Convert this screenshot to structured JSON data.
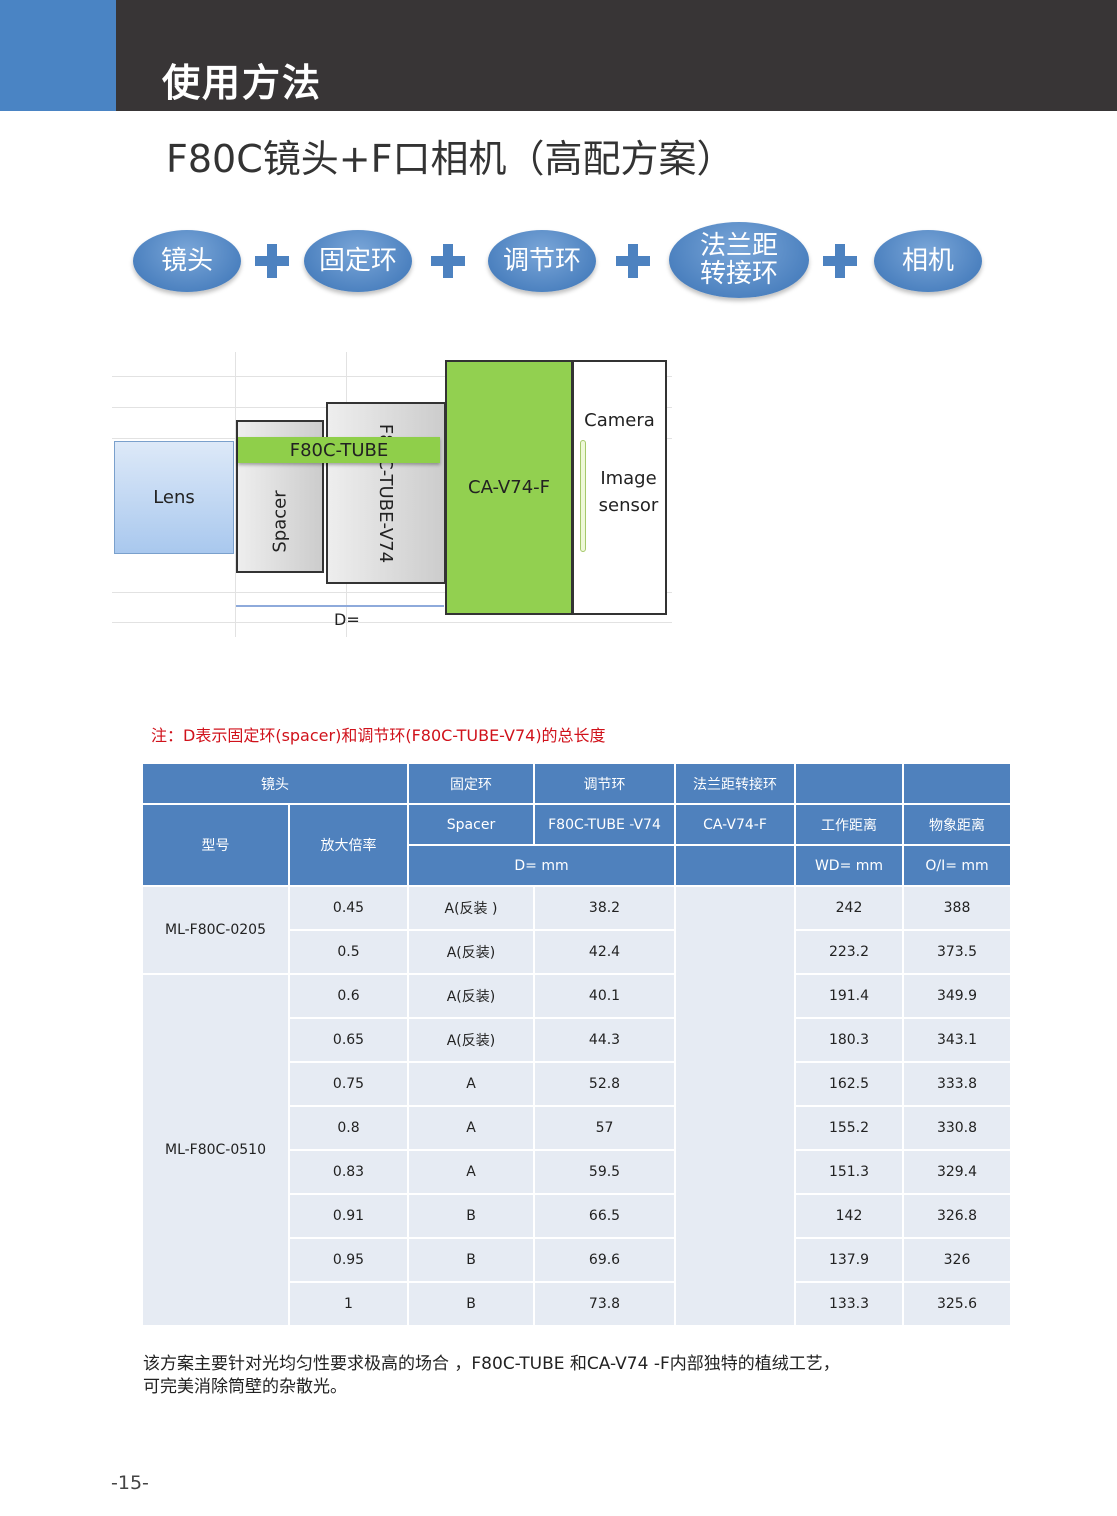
{
  "header": {
    "title": "使用方法"
  },
  "subtitle": "F80C镜头+F口相机（高配方案）",
  "flow": [
    "镜头",
    "固定环",
    "调节环",
    "法兰距\n转接环",
    "相机"
  ],
  "diagram": {
    "lens": "Lens",
    "spacer": "Spacer",
    "tube_label": "F80C-TUBE",
    "tube_v74": "F80C-TUBE-V74",
    "adapter": "CA-V74-F",
    "camera": "Camera",
    "sensor": "Image\nsensor",
    "d_label": "D="
  },
  "note": "注：D表示固定环(spacer)和调节环(F80C-TUBE-V74)的总长度",
  "table": {
    "header1": [
      "镜头",
      "固定环",
      "调节环",
      "法兰距转接环",
      "",
      ""
    ],
    "header2": [
      "型号",
      "放大倍率",
      "Spacer",
      "F80C-TUBE -V74",
      "CA-V74-F",
      "工作距离",
      "物象距离"
    ],
    "header3": [
      "D=      mm",
      "",
      "WD= mm",
      "O/I=  mm"
    ],
    "groups": [
      {
        "model": "ML-F80C-0205",
        "rows": [
          [
            "0.45",
            "A(反装 )",
            "38.2",
            "242",
            "388"
          ],
          [
            "0.5",
            "A(反装)",
            "42.4",
            "223.2",
            "373.5"
          ]
        ]
      },
      {
        "model": "ML-F80C-0510",
        "rows": [
          [
            "0.6",
            "A(反装)",
            "40.1",
            "191.4",
            "349.9"
          ],
          [
            "0.65",
            "A(反装)",
            "44.3",
            "180.3",
            "343.1"
          ],
          [
            "0.75",
            "A",
            "52.8",
            "162.5",
            "333.8"
          ],
          [
            "0.8",
            "A",
            "57",
            "155.2",
            "330.8"
          ],
          [
            "0.83",
            "A",
            "59.5",
            "151.3",
            "329.4"
          ],
          [
            "0.91",
            "B",
            "66.5",
            "142",
            "326.8"
          ],
          [
            "0.95",
            "B",
            "69.6",
            "137.9",
            "326"
          ],
          [
            "1",
            "B",
            "73.8",
            "133.3",
            "325.6"
          ]
        ]
      }
    ]
  },
  "footer": "该方案主要针对光均匀性要求极高的场合 ，F80C-TUBE 和CA-V74 -F内部独特的植绒工艺，\n可完美消除筒壁的杂散光。",
  "page_number": "-15-",
  "colors": {
    "header_blue": "#4a84c4",
    "header_dark": "#383536",
    "table_header": "#4f81bd",
    "table_body": "#e6ebf3",
    "note_red": "#d0121b",
    "green": "#92d050"
  }
}
